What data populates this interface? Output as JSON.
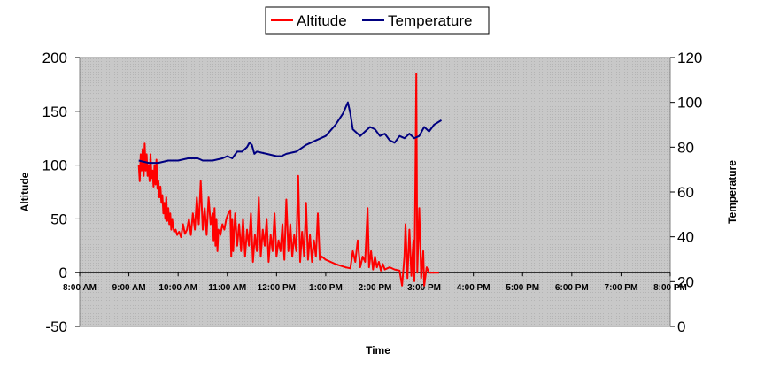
{
  "chart_data": {
    "type": "line",
    "title": "",
    "xlabel": "Time",
    "ylabel": "Altitude",
    "y2label": "Temperature",
    "ylim": [
      -50,
      200
    ],
    "y2lim": [
      0,
      120
    ],
    "yticks": [
      "200",
      "150",
      "100",
      "50",
      "0",
      "-50"
    ],
    "y2ticks": [
      "120",
      "100",
      "80",
      "60",
      "40",
      "20",
      "0"
    ],
    "x_ticks": [
      "8:00 AM",
      "9:00 AM",
      "10:00 AM",
      "11:00 AM",
      "12:00 PM",
      "1:00 PM",
      "2:00 PM",
      "3:00 PM",
      "4:00 PM",
      "5:00 PM",
      "6:00 PM",
      "7:00 PM",
      "8:00 PM"
    ],
    "xlim_hours": [
      8,
      20
    ],
    "grid": false,
    "legend_position": "top-center",
    "plot_background": "#c0c0c0",
    "series": [
      {
        "name": "Altitude",
        "axis": "left",
        "color": "#ff0000",
        "x_hours": [
          9.2,
          9.25,
          9.3,
          9.35,
          9.4,
          9.45,
          9.5,
          9.55,
          9.6,
          9.65,
          9.7,
          9.75,
          9.8,
          9.85,
          9.9,
          9.95,
          10.0,
          10.05,
          10.1,
          10.15,
          10.2,
          10.3,
          10.4,
          10.5,
          10.6,
          10.7,
          10.75,
          10.8,
          10.85,
          10.9,
          10.95,
          11.0,
          11.05,
          11.1,
          11.15,
          11.2,
          11.25,
          11.3,
          11.35,
          11.4,
          11.5,
          11.6,
          11.7,
          11.8,
          11.85,
          11.9,
          11.95,
          12.0,
          12.05,
          12.1,
          12.15,
          12.2,
          12.25,
          12.3,
          12.35,
          12.4,
          12.45,
          12.5,
          12.55,
          12.6,
          12.65,
          12.7,
          12.75,
          12.8,
          12.85,
          12.9,
          13.0,
          13.1,
          13.2,
          13.3,
          13.4,
          13.5,
          13.55,
          13.6,
          13.7,
          13.8,
          13.85,
          13.9,
          13.95,
          14.0,
          14.05,
          14.1,
          14.15,
          14.2,
          14.3,
          14.4,
          14.5,
          14.55,
          14.6,
          14.65,
          14.7,
          14.75,
          14.8,
          14.85,
          14.9,
          14.95,
          15.0,
          15.05,
          15.1,
          15.15,
          15.2,
          15.3
        ],
        "values": [
          100,
          115,
          95,
          110,
          100,
          90,
          95,
          105,
          80,
          70,
          55,
          60,
          45,
          50,
          40,
          35,
          38,
          34,
          45,
          36,
          40,
          60,
          70,
          50,
          65,
          55,
          30,
          55,
          20,
          50,
          40,
          45,
          50,
          15,
          55,
          20,
          55,
          25,
          45,
          20,
          40,
          15,
          30,
          20,
          50,
          10,
          30,
          15,
          35,
          20,
          55,
          10,
          35,
          15,
          40,
          10,
          35,
          15,
          45,
          12,
          30,
          10,
          30,
          15,
          40,
          12,
          15,
          12,
          10,
          8,
          5,
          4,
          20,
          5,
          10,
          5,
          30,
          5,
          20,
          3,
          15,
          2,
          10,
          5,
          8,
          3,
          5,
          3,
          2,
          -10,
          40,
          -5,
          -3,
          80,
          -15,
          185,
          0,
          60,
          -10,
          10,
          0,
          0
        ],
        "raw_points": [
          [
            9.2,
            100
          ],
          [
            9.22,
            85
          ],
          [
            9.24,
            110
          ],
          [
            9.26,
            95
          ],
          [
            9.28,
            115
          ],
          [
            9.3,
            90
          ],
          [
            9.32,
            120
          ],
          [
            9.34,
            95
          ],
          [
            9.36,
            110
          ],
          [
            9.38,
            90
          ],
          [
            9.4,
            100
          ],
          [
            9.42,
            85
          ],
          [
            9.44,
            110
          ],
          [
            9.46,
            88
          ],
          [
            9.48,
            95
          ],
          [
            9.5,
            80
          ],
          [
            9.52,
            100
          ],
          [
            9.54,
            82
          ],
          [
            9.56,
            105
          ],
          [
            9.58,
            78
          ],
          [
            9.6,
            85
          ],
          [
            9.62,
            70
          ],
          [
            9.64,
            80
          ],
          [
            9.66,
            65
          ],
          [
            9.68,
            72
          ],
          [
            9.7,
            55
          ],
          [
            9.72,
            65
          ],
          [
            9.74,
            50
          ],
          [
            9.76,
            70
          ],
          [
            9.78,
            48
          ],
          [
            9.8,
            60
          ],
          [
            9.82,
            45
          ],
          [
            9.84,
            55
          ],
          [
            9.86,
            40
          ],
          [
            9.88,
            50
          ],
          [
            9.9,
            42
          ],
          [
            9.92,
            38
          ],
          [
            9.95,
            40
          ],
          [
            9.98,
            35
          ],
          [
            10.02,
            38
          ],
          [
            10.06,
            33
          ],
          [
            10.1,
            45
          ],
          [
            10.14,
            36
          ],
          [
            10.18,
            40
          ],
          [
            10.22,
            50
          ],
          [
            10.26,
            35
          ],
          [
            10.3,
            55
          ],
          [
            10.34,
            40
          ],
          [
            10.38,
            70
          ],
          [
            10.42,
            45
          ],
          [
            10.46,
            85
          ],
          [
            10.5,
            40
          ],
          [
            10.54,
            60
          ],
          [
            10.58,
            35
          ],
          [
            10.62,
            70
          ],
          [
            10.66,
            45
          ],
          [
            10.7,
            55
          ],
          [
            10.72,
            30
          ],
          [
            10.74,
            60
          ],
          [
            10.76,
            25
          ],
          [
            10.78,
            50
          ],
          [
            10.8,
            20
          ],
          [
            10.82,
            40
          ],
          [
            10.86,
            35
          ],
          [
            10.9,
            45
          ],
          [
            10.94,
            40
          ],
          [
            10.98,
            50
          ],
          [
            11.02,
            55
          ],
          [
            11.06,
            58
          ],
          [
            11.08,
            15
          ],
          [
            11.1,
            50
          ],
          [
            11.12,
            20
          ],
          [
            11.16,
            55
          ],
          [
            11.2,
            25
          ],
          [
            11.24,
            45
          ],
          [
            11.28,
            20
          ],
          [
            11.32,
            50
          ],
          [
            11.36,
            15
          ],
          [
            11.4,
            40
          ],
          [
            11.44,
            25
          ],
          [
            11.48,
            55
          ],
          [
            11.52,
            10
          ],
          [
            11.56,
            35
          ],
          [
            11.6,
            20
          ],
          [
            11.64,
            70
          ],
          [
            11.68,
            15
          ],
          [
            11.72,
            40
          ],
          [
            11.76,
            25
          ],
          [
            11.8,
            50
          ],
          [
            11.84,
            10
          ],
          [
            11.88,
            35
          ],
          [
            11.92,
            20
          ],
          [
            11.96,
            55
          ],
          [
            12.0,
            15
          ],
          [
            12.04,
            30
          ],
          [
            12.08,
            20
          ],
          [
            12.12,
            45
          ],
          [
            12.16,
            12
          ],
          [
            12.2,
            68
          ],
          [
            12.24,
            20
          ],
          [
            12.28,
            45
          ],
          [
            12.32,
            15
          ],
          [
            12.36,
            35
          ],
          [
            12.4,
            20
          ],
          [
            12.44,
            90
          ],
          [
            12.48,
            10
          ],
          [
            12.52,
            38
          ],
          [
            12.56,
            15
          ],
          [
            12.6,
            65
          ],
          [
            12.64,
            12
          ],
          [
            12.68,
            35
          ],
          [
            12.72,
            10
          ],
          [
            12.76,
            30
          ],
          [
            12.8,
            15
          ],
          [
            12.84,
            55
          ],
          [
            12.88,
            12
          ],
          [
            12.92,
            15
          ],
          [
            13.0,
            12
          ],
          [
            13.2,
            8
          ],
          [
            13.4,
            5
          ],
          [
            13.5,
            4
          ],
          [
            13.55,
            20
          ],
          [
            13.6,
            10
          ],
          [
            13.65,
            30
          ],
          [
            13.7,
            5
          ],
          [
            13.75,
            15
          ],
          [
            13.8,
            10
          ],
          [
            13.85,
            60
          ],
          [
            13.88,
            5
          ],
          [
            13.92,
            20
          ],
          [
            13.96,
            3
          ],
          [
            14.0,
            15
          ],
          [
            14.04,
            5
          ],
          [
            14.08,
            10
          ],
          [
            14.12,
            2
          ],
          [
            14.16,
            8
          ],
          [
            14.2,
            3
          ],
          [
            14.3,
            5
          ],
          [
            14.4,
            3
          ],
          [
            14.5,
            2
          ],
          [
            14.55,
            -12
          ],
          [
            14.6,
            15
          ],
          [
            14.62,
            45
          ],
          [
            14.66,
            -5
          ],
          [
            14.7,
            40
          ],
          [
            14.74,
            -3
          ],
          [
            14.78,
            30
          ],
          [
            14.8,
            -8
          ],
          [
            14.82,
            80
          ],
          [
            14.84,
            185
          ],
          [
            14.86,
            0
          ],
          [
            14.9,
            60
          ],
          [
            14.94,
            -5
          ],
          [
            14.98,
            20
          ],
          [
            15.0,
            -12
          ],
          [
            15.05,
            5
          ],
          [
            15.1,
            0
          ],
          [
            15.3,
            0
          ]
        ]
      },
      {
        "name": "Temperature",
        "axis": "right",
        "color": "#000080",
        "raw_points": [
          [
            9.2,
            74
          ],
          [
            9.4,
            73
          ],
          [
            9.6,
            73
          ],
          [
            9.8,
            74
          ],
          [
            10.0,
            74
          ],
          [
            10.2,
            75
          ],
          [
            10.4,
            75
          ],
          [
            10.5,
            74
          ],
          [
            10.7,
            74
          ],
          [
            10.9,
            75
          ],
          [
            11.0,
            76
          ],
          [
            11.1,
            75
          ],
          [
            11.2,
            78
          ],
          [
            11.3,
            78
          ],
          [
            11.4,
            80
          ],
          [
            11.45,
            82
          ],
          [
            11.5,
            81
          ],
          [
            11.55,
            77
          ],
          [
            11.6,
            78
          ],
          [
            11.8,
            77
          ],
          [
            12.0,
            76
          ],
          [
            12.1,
            76
          ],
          [
            12.2,
            77
          ],
          [
            12.4,
            78
          ],
          [
            12.6,
            81
          ],
          [
            12.8,
            83
          ],
          [
            13.0,
            85
          ],
          [
            13.2,
            90
          ],
          [
            13.35,
            95
          ],
          [
            13.45,
            100
          ],
          [
            13.5,
            95
          ],
          [
            13.55,
            88
          ],
          [
            13.7,
            85
          ],
          [
            13.8,
            87
          ],
          [
            13.9,
            89
          ],
          [
            14.0,
            88
          ],
          [
            14.1,
            85
          ],
          [
            14.2,
            86
          ],
          [
            14.3,
            83
          ],
          [
            14.4,
            82
          ],
          [
            14.5,
            85
          ],
          [
            14.6,
            84
          ],
          [
            14.7,
            86
          ],
          [
            14.8,
            84
          ],
          [
            14.9,
            85
          ],
          [
            15.0,
            89
          ],
          [
            15.1,
            87
          ],
          [
            15.2,
            90
          ],
          [
            15.35,
            92
          ]
        ]
      }
    ]
  }
}
